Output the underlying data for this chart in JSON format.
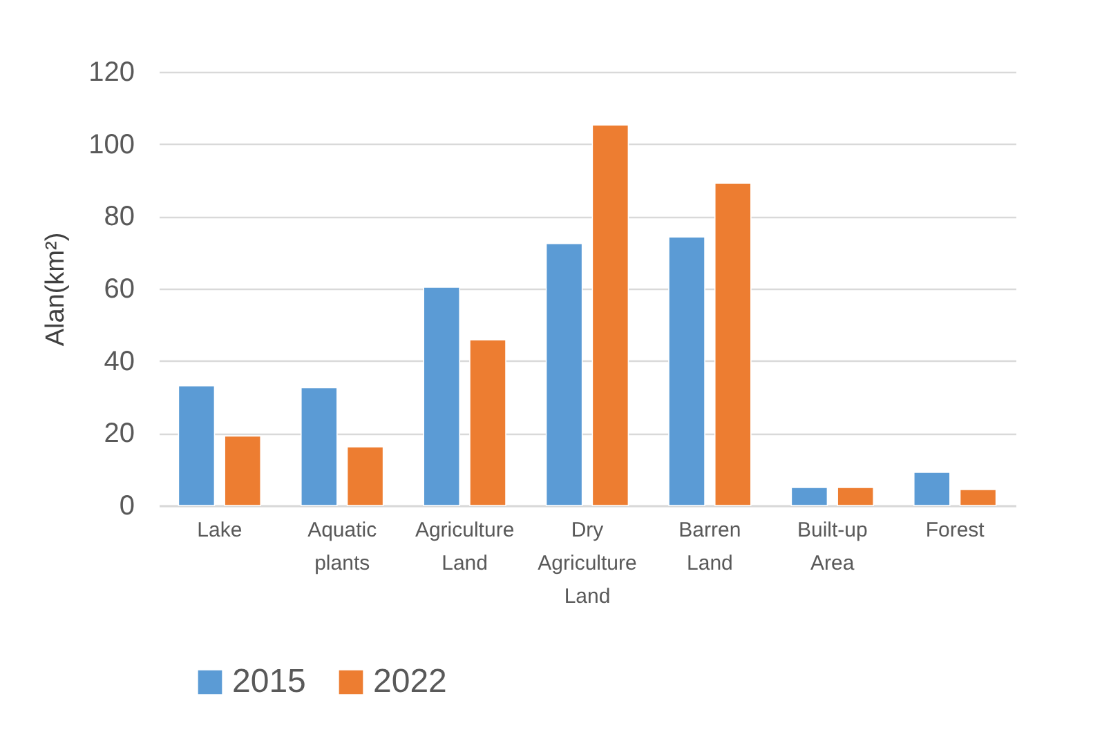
{
  "chart_data": {
    "type": "bar",
    "ylabel": "Alan(km²)",
    "categories": [
      "Lake",
      "Aquatic plants",
      "Agriculture Land",
      "Dry Agriculture Land",
      "Barren Land",
      "Built-up Area",
      "Forest"
    ],
    "series": [
      {
        "name": "2015",
        "color": "#5b9bd5",
        "values": [
          33.1,
          32.6,
          60.4,
          72.5,
          74.3,
          5.0,
          9.2
        ]
      },
      {
        "name": "2022",
        "color": "#ed7d31",
        "values": [
          19.2,
          16.2,
          45.8,
          105.3,
          89.2,
          5.0,
          4.4
        ]
      }
    ],
    "ylim": [
      0,
      120
    ],
    "yticks": [
      0,
      20,
      40,
      60,
      80,
      100,
      120
    ],
    "grid": "y",
    "legend": "bottom"
  }
}
